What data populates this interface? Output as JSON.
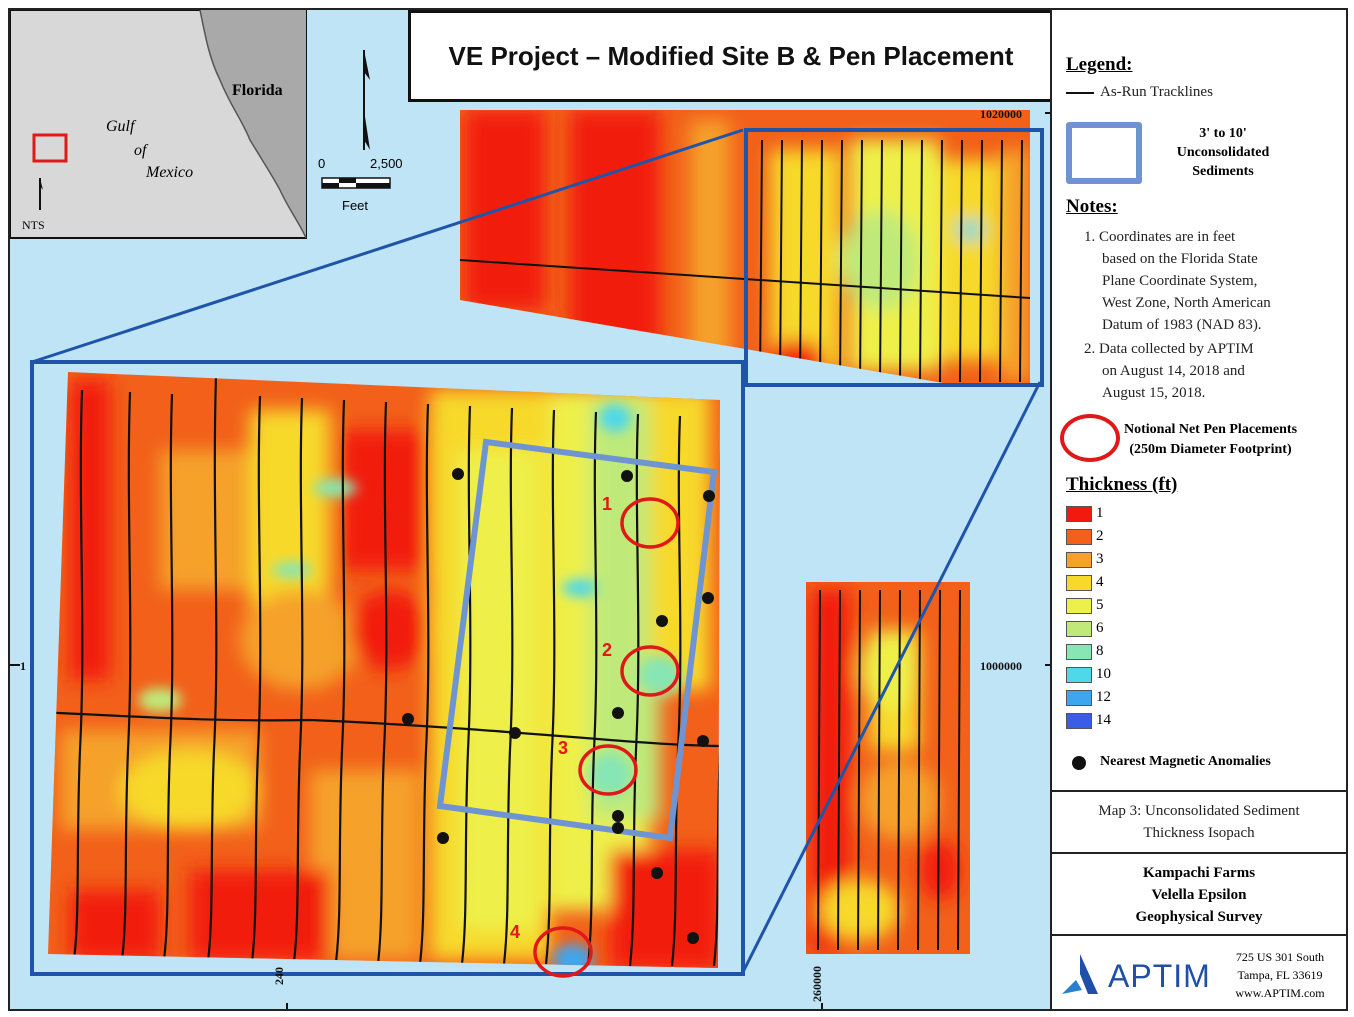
{
  "title": "VE Project – Modified Site B & Pen Placement",
  "inset": {
    "florida": "Florida",
    "gulf_line1": "Gulf",
    "gulf_line2": "of",
    "gulf_line3": "Mexico",
    "nts": "NTS"
  },
  "scale_bar": {
    "start": "0",
    "end": "2,500",
    "unit": "Feet"
  },
  "coordinates": {
    "n_top": "1020000",
    "n_mid": "1000000",
    "e_left": "240",
    "e_right": "260000",
    "left_tick": "1"
  },
  "pens": [
    {
      "id": "1",
      "label": "1"
    },
    {
      "id": "2",
      "label": "2"
    },
    {
      "id": "3",
      "label": "3"
    },
    {
      "id": "4",
      "label": "4"
    }
  ],
  "legend": {
    "heading": "Legend:",
    "tracklines": "As-Run Tracklines",
    "box_label_1": "3' to 10'",
    "box_label_2": "Unconsolidated",
    "box_label_3": "Sediments",
    "notes_heading": "Notes:",
    "note1_lines": [
      "1. Coordinates are in feet",
      "based on the Florida State",
      "Plane Coordinate System,",
      "West Zone, North American",
      "Datum of 1983 (NAD 83)."
    ],
    "note2_lines": [
      "2. Data collected by APTIM",
      "on August 14, 2018 and",
      "August 15, 2018."
    ],
    "pen_label_1": "Notional Net Pen Placements",
    "pen_label_2": "(250m Diameter Footprint)",
    "thickness_heading": "Thickness (ft)",
    "thickness_classes": [
      {
        "label": "1",
        "color": "#f21a0f"
      },
      {
        "label": "2",
        "color": "#f2601a"
      },
      {
        "label": "3",
        "color": "#f5a12a"
      },
      {
        "label": "4",
        "color": "#f7d92a"
      },
      {
        "label": "5",
        "color": "#eef04a"
      },
      {
        "label": "6",
        "color": "#bfea7a"
      },
      {
        "label": "8",
        "color": "#86e6b4"
      },
      {
        "label": "10",
        "color": "#4fd8e8"
      },
      {
        "label": "12",
        "color": "#3fa6ee"
      },
      {
        "label": "14",
        "color": "#3a5de8"
      }
    ],
    "anomalies": "Nearest Magnetic Anomalies"
  },
  "map_caption_1": "Map 3: Unconsolidated Sediment",
  "map_caption_2": "Thickness Isopach",
  "client_1": "Kampachi Farms",
  "client_2": "Velella Epsilon",
  "client_3": "Geophysical Survey",
  "company": "APTIM",
  "address_1": "725 US 301 South",
  "address_2": "Tampa, FL 33619",
  "address_3": "www.APTIM.com",
  "colors": {
    "water": "#bfe4f6",
    "frame_blue": "#1f55a8",
    "box_blue": "#6f94d2",
    "pen_red": "#e01818"
  }
}
